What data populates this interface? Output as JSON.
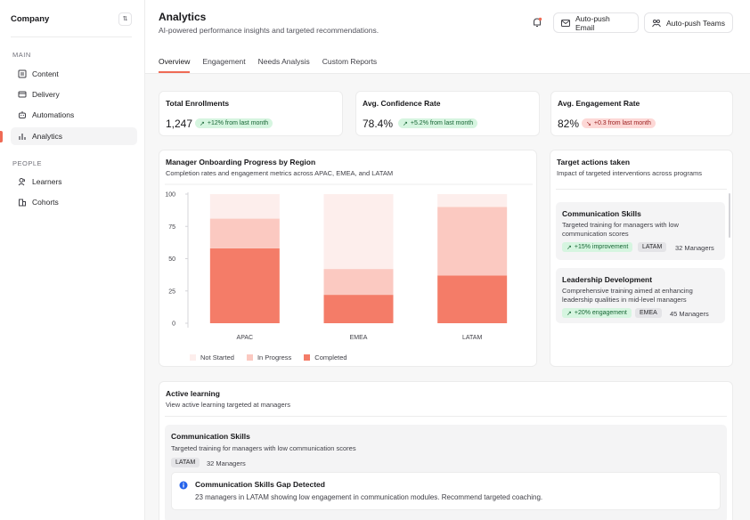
{
  "sidebar": {
    "company": "Company",
    "sections": {
      "main": "MAIN",
      "people": "PEOPLE"
    },
    "items": [
      {
        "label": "Content",
        "icon": "content-icon"
      },
      {
        "label": "Delivery",
        "icon": "delivery-icon"
      },
      {
        "label": "Automations",
        "icon": "robot-icon"
      },
      {
        "label": "Analytics",
        "icon": "bar-chart-icon"
      },
      {
        "label": "Learners",
        "icon": "users-icon"
      },
      {
        "label": "Cohorts",
        "icon": "building-icon"
      }
    ]
  },
  "header": {
    "title": "Analytics",
    "subtitle": "AI-powered performance insights and targeted recommendations.",
    "email_btn": "Auto-push Email",
    "teams_btn": "Auto-push Teams",
    "tabs": [
      "Overview",
      "Engagement",
      "Needs Analysis",
      "Custom Reports"
    ]
  },
  "stats": [
    {
      "label": "Total Enrollments",
      "value": "1,247",
      "change": "+12% from last month",
      "trend": "up"
    },
    {
      "label": "Avg. Confidence Rate",
      "value": "78.4%",
      "change": "+5.2% from last month",
      "trend": "up"
    },
    {
      "label": "Avg. Engagement Rate",
      "value": "82%",
      "change": "+0.3 from last month",
      "trend": "down"
    }
  ],
  "chart": {
    "title": "Manager Onboarding Progress by Region",
    "subtitle": "Completion rates and engagement metrics across APAC, EMEA, and LATAM"
  },
  "chart_data": {
    "type": "bar",
    "stacked": true,
    "categories": [
      "APAC",
      "EMEA",
      "LATAM"
    ],
    "series": [
      {
        "name": "Completed",
        "values": [
          58,
          22,
          37
        ],
        "color": "#f47c68"
      },
      {
        "name": "In Progress",
        "values": [
          23,
          20,
          53
        ],
        "color": "#fbc9c1"
      },
      {
        "name": "Not Started",
        "values": [
          19,
          58,
          10
        ],
        "color": "#fdeeec"
      }
    ],
    "yticks": [
      0,
      25,
      50,
      75,
      100
    ],
    "ylim": [
      0,
      100
    ],
    "legend": [
      "Not Started",
      "In Progress",
      "Completed"
    ]
  },
  "targets": {
    "title": "Target actions taken",
    "subtitle": "Impact of targeted interventions across programs",
    "items": [
      {
        "title": "Communication Skills",
        "desc": "Targeted training for managers with low communication scores",
        "impact": "+15% improvement",
        "region": "LATAM",
        "managers": "32 Managers"
      },
      {
        "title": "Leadership Development",
        "desc": "Comprehensive training aimed at enhancing leadership qualities in mid-level managers",
        "impact": "+20% engagement",
        "region": "EMEA",
        "managers": "45 Managers"
      }
    ]
  },
  "active": {
    "title": "Active learning",
    "subtitle": "View active learning targeted at managers",
    "item": {
      "title": "Communication Skills",
      "desc": "Targeted training for managers with low communication scores",
      "region": "LATAM",
      "managers": "32 Managers",
      "insight_title": "Communication Skills Gap Detected",
      "insight_desc": "23 managers in LATAM showing low engagement in communication modules. Recommend targeted coaching."
    }
  },
  "colors": {
    "accent": "#ef6a55",
    "green_bg": "#d6f5e0",
    "red_bg": "#fdd8d6"
  }
}
